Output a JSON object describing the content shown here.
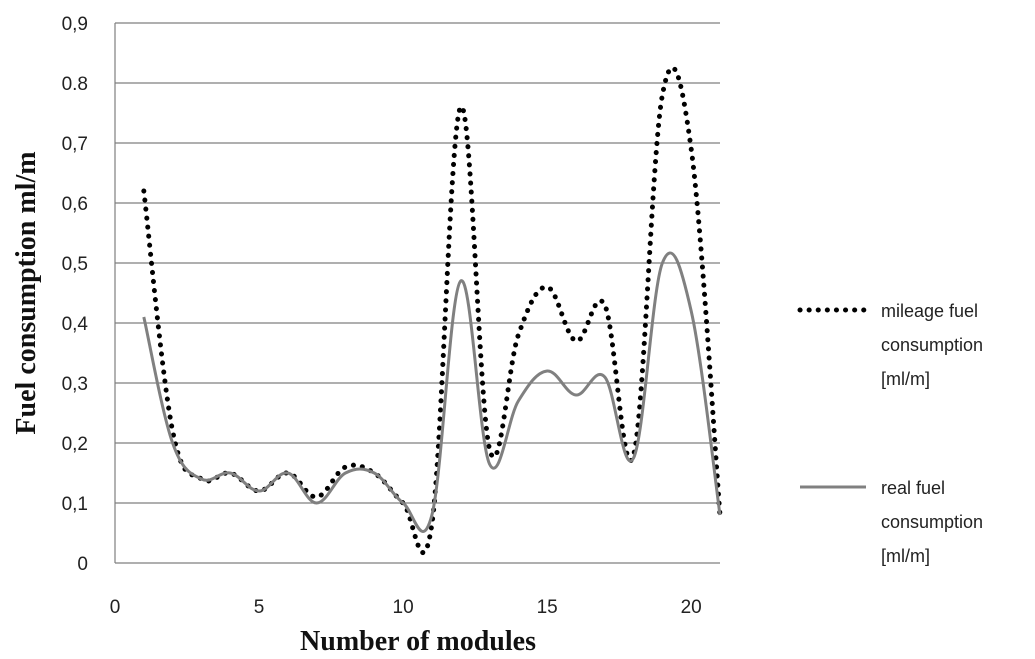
{
  "chart_data": {
    "type": "line",
    "xlabel": "Number of modules",
    "ylabel": "Fuel consumption ml/m",
    "xlim": [
      0,
      21
    ],
    "ylim": [
      0,
      0.9
    ],
    "x_ticks": [
      "0",
      "5",
      "10",
      "15",
      "20"
    ],
    "x_tick_values": [
      0,
      5,
      10,
      15,
      20
    ],
    "y_ticks": [
      "0",
      "0,1",
      "0,2",
      "0,3",
      "0,4",
      "0,5",
      "0,6",
      "0,7",
      "0.8",
      "0,9"
    ],
    "y_tick_values": [
      0,
      0.1,
      0.2,
      0.3,
      0.4,
      0.5,
      0.6,
      0.7,
      0.8,
      0.9
    ],
    "grid": "horizontal",
    "legend_position": "right",
    "series": [
      {
        "name_lines": [
          "mileage fuel",
          "consumption",
          "[ml/m]"
        ],
        "style": "dotted",
        "color": "#000000",
        "x": [
          1,
          2,
          3,
          4,
          5,
          6,
          7,
          8,
          9,
          10,
          11,
          12,
          13,
          14,
          15,
          16,
          17,
          18,
          19,
          20,
          21
        ],
        "y": [
          0.62,
          0.22,
          0.14,
          0.15,
          0.12,
          0.15,
          0.11,
          0.16,
          0.15,
          0.1,
          0.065,
          0.76,
          0.19,
          0.38,
          0.46,
          0.37,
          0.43,
          0.18,
          0.78,
          0.69,
          0.08
        ]
      },
      {
        "name_lines": [
          "real fuel",
          "consumption",
          "[ml/m]"
        ],
        "style": "solid",
        "color": "#808080",
        "x": [
          1,
          2,
          3,
          4,
          5,
          6,
          7,
          8,
          9,
          10,
          11,
          12,
          13,
          14,
          15,
          16,
          17,
          18,
          19,
          20,
          21
        ],
        "y": [
          0.41,
          0.2,
          0.14,
          0.15,
          0.12,
          0.15,
          0.1,
          0.15,
          0.15,
          0.1,
          0.08,
          0.47,
          0.165,
          0.27,
          0.32,
          0.28,
          0.31,
          0.175,
          0.5,
          0.42,
          0.08
        ]
      }
    ]
  }
}
